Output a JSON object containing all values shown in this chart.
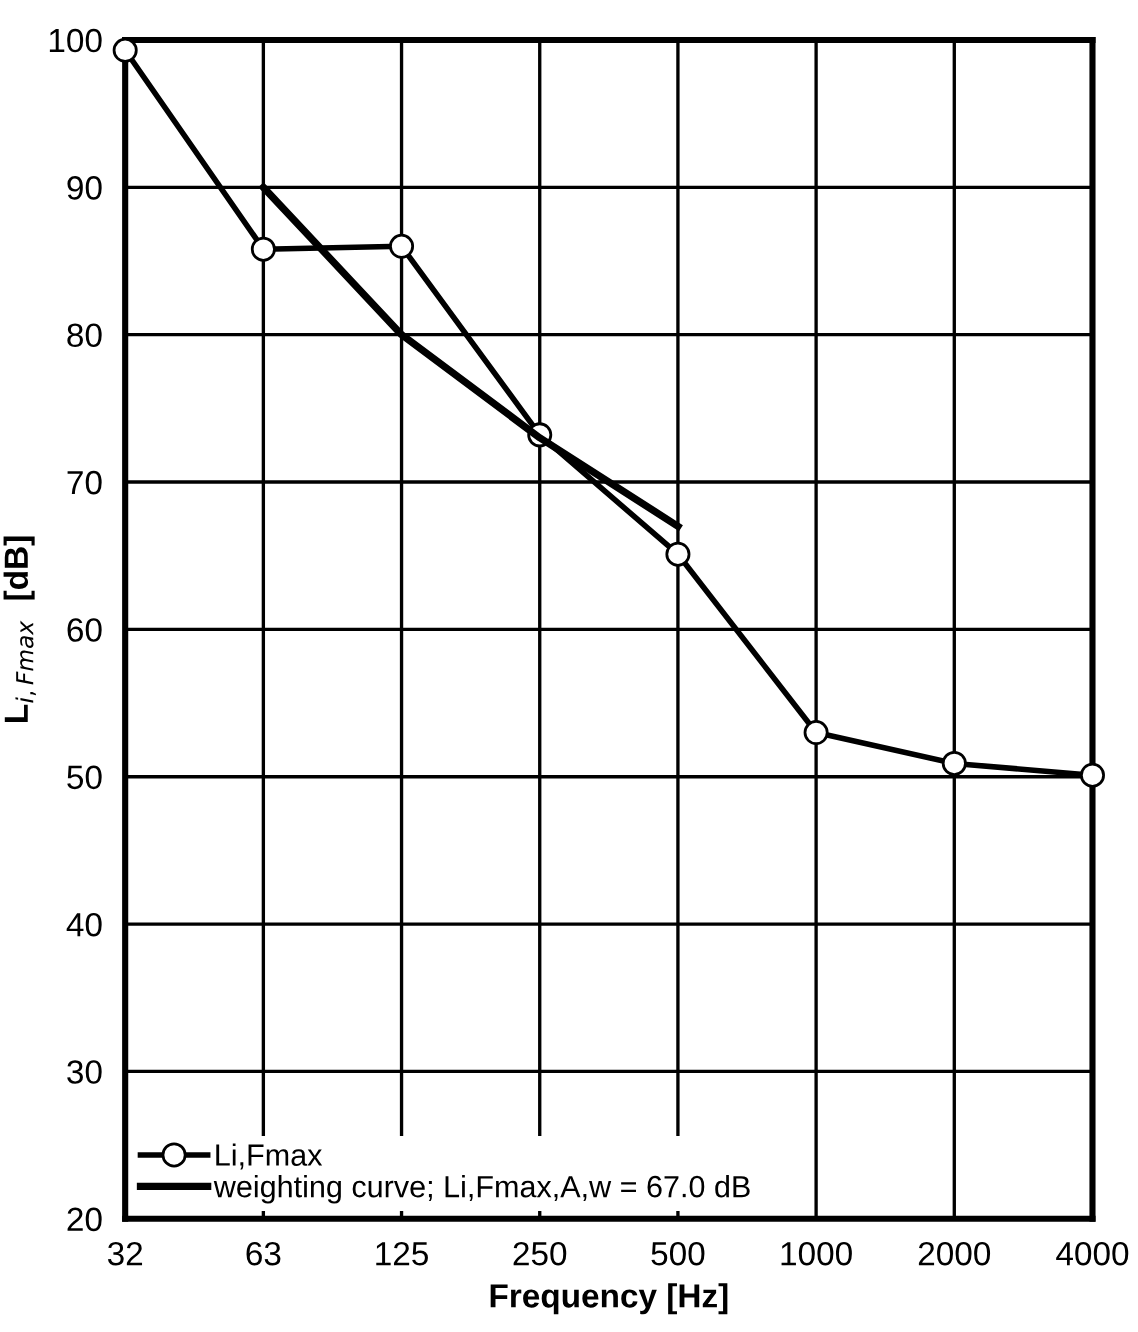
{
  "chart_data": {
    "type": "line",
    "xlabel": "Frequency [Hz]",
    "ylabel": "L$_{i,Fmax}$  [dB]",
    "categories": [
      "32",
      "63",
      "125",
      "250",
      "500",
      "1000",
      "2000",
      "4000"
    ],
    "series": [
      {
        "name": "Li,Fmax",
        "color": "#000000",
        "marker": "circle",
        "values": [
          99.3,
          85.8,
          86.0,
          73.2,
          65.1,
          53.0,
          50.9,
          50.1
        ]
      },
      {
        "name": "weighting curve; Li,Fmax,A,w = 67.0 dB",
        "color": "#000000",
        "marker": "none",
        "values": [
          null,
          90,
          80,
          73,
          67,
          null,
          null,
          null
        ]
      }
    ],
    "ylim": [
      20,
      100
    ],
    "yticks": [
      20,
      30,
      40,
      50,
      60,
      70,
      80,
      90,
      100
    ],
    "grid": true,
    "legend": "bottom left",
    "line_style": "solid"
  }
}
